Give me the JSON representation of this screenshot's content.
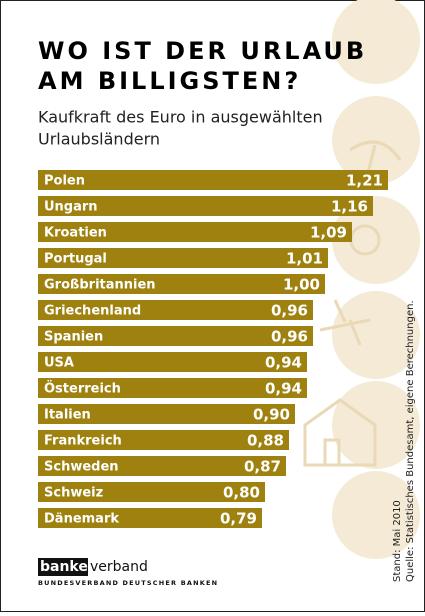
{
  "chart_data": {
    "type": "bar",
    "title": [
      "WO IST DER URLAUB",
      "AM BILLIGSTEN?"
    ],
    "subtitle": [
      "Kaufkraft des Euro in ausgewählten",
      "Urlaubsländern"
    ],
    "categories": [
      "Polen",
      "Ungarn",
      "Kroatien",
      "Portugal",
      "Großbritannien",
      "Griechenland",
      "Spanien",
      "USA",
      "Österreich",
      "Italien",
      "Frankreich",
      "Schweden",
      "Schweiz",
      "Dänemark"
    ],
    "values": [
      1.21,
      1.16,
      1.09,
      1.01,
      1.0,
      0.96,
      0.96,
      0.94,
      0.94,
      0.9,
      0.88,
      0.87,
      0.8,
      0.79
    ],
    "value_labels": [
      "1,21",
      "1,16",
      "1,09",
      "1,01",
      "1,00",
      "0,96",
      "0,96",
      "0,94",
      "0,94",
      "0,90",
      "0,88",
      "0,87",
      "0,80",
      "0,79"
    ],
    "color": "#9e810f",
    "notes": [
      "Stand: Mai 2010",
      "Quelle: Statistisches Bundesamt, eigene Berechnungen."
    ]
  },
  "logo": {
    "part_a": "banken",
    "part_b": "verband",
    "tagline": "BUNDESVERBAND DEUTSCHER BANKEN"
  }
}
